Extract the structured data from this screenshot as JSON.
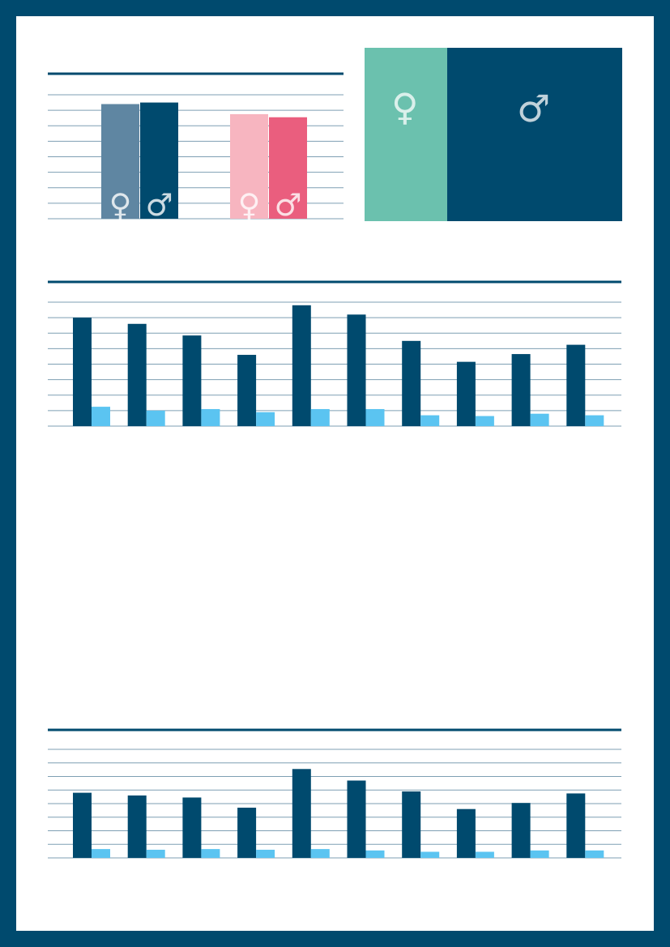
{
  "colors": {
    "border": "#004a6e",
    "rule": "#004a6e",
    "gridline": "#7e9fb3",
    "series_dark": "#004a6e",
    "series_light": "#5bc4f1",
    "chart1_female_blue": "#5f86a2",
    "chart1_male_blue": "#004a6e",
    "chart1_female_pink": "#f7b5c0",
    "chart1_male_pink": "#ea5e7e",
    "panel_female": "#6bc1ae",
    "panel_male": "#004a6e"
  },
  "icons": {
    "female": "♀",
    "male": "♂"
  },
  "gender_panels": {
    "female_share": 0.32,
    "male_share": 0.68
  },
  "chart_data": [
    {
      "type": "bar",
      "grid": true,
      "ylim": [
        0,
        8
      ],
      "groups": [
        {
          "bars": [
            {
              "value": 7.4,
              "color_key": "chart1_female_blue",
              "icon": "female"
            },
            {
              "value": 7.5,
              "color_key": "chart1_male_blue",
              "icon": "male"
            }
          ]
        },
        {
          "bars": [
            {
              "value": 6.75,
              "color_key": "chart1_female_pink",
              "icon": "female"
            },
            {
              "value": 6.55,
              "color_key": "chart1_male_pink",
              "icon": "male"
            }
          ]
        }
      ]
    },
    {
      "type": "bar",
      "grid": true,
      "ylim": [
        0,
        8
      ],
      "series": [
        {
          "values": [
            7.0,
            6.6,
            5.85,
            4.6,
            7.8,
            7.2,
            5.5,
            4.15,
            4.65,
            5.25
          ]
        },
        {
          "values": [
            1.25,
            1.0,
            1.1,
            0.9,
            1.1,
            1.1,
            0.7,
            0.65,
            0.8,
            0.7
          ]
        }
      ]
    },
    {
      "type": "bar",
      "grid": true,
      "ylim": [
        0,
        8
      ],
      "series": [
        {
          "values": [
            4.8,
            4.6,
            4.45,
            3.7,
            6.55,
            5.7,
            4.9,
            3.6,
            4.05,
            4.75
          ]
        },
        {
          "values": [
            0.65,
            0.6,
            0.65,
            0.6,
            0.65,
            0.55,
            0.45,
            0.45,
            0.55,
            0.55
          ]
        }
      ]
    }
  ]
}
